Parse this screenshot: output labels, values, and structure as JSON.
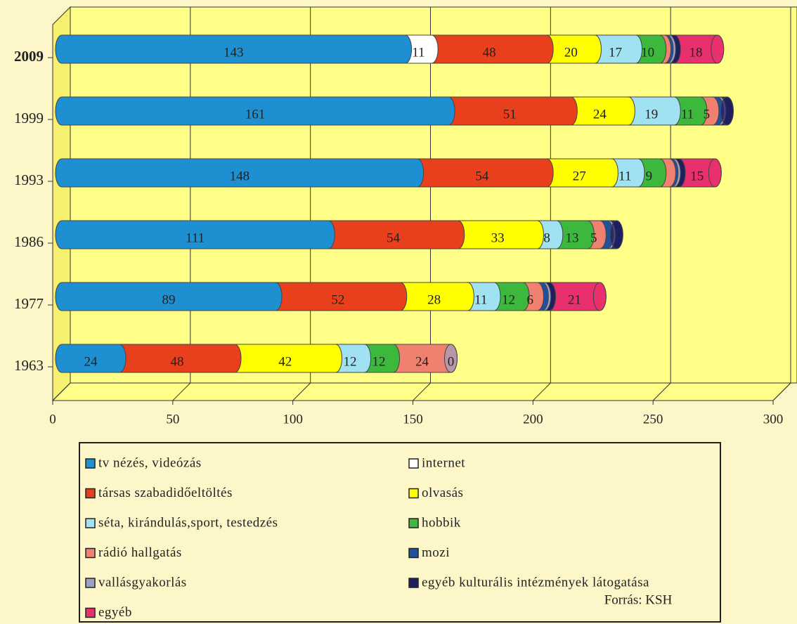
{
  "chart_data": {
    "type": "bar3d",
    "orientation": "horizontal",
    "stacked": true,
    "categories": [
      "1963",
      "1977",
      "1986",
      "1993",
      "1999",
      "2009"
    ],
    "series": [
      {
        "name": "tv nézés, videózás",
        "color": "#1e8fd0",
        "values": [
          24,
          89,
          111,
          148,
          161,
          143
        ]
      },
      {
        "name": "internet",
        "color": "#ffffff",
        "values": [
          null,
          null,
          null,
          null,
          null,
          11
        ]
      },
      {
        "name": "társas szabadidőeltöltés",
        "color": "#e8401c",
        "values": [
          48,
          52,
          54,
          54,
          51,
          48
        ]
      },
      {
        "name": "olvasás",
        "color": "#ffff00",
        "values": [
          42,
          28,
          33,
          27,
          24,
          20
        ]
      },
      {
        "name": "séta, kirándulás,sport, testedzés",
        "color": "#a0e2f2",
        "values": [
          12,
          11,
          8,
          11,
          19,
          17
        ]
      },
      {
        "name": "hobbik",
        "color": "#3cb83c",
        "values": [
          12,
          12,
          13,
          9,
          11,
          10
        ]
      },
      {
        "name": "rádió hallgatás",
        "color": "#f08070",
        "values": [
          24,
          6,
          5,
          4,
          5,
          2
        ]
      },
      {
        "name": "mozi",
        "color": "#2050a0",
        "values": [
          null,
          2,
          3,
          1,
          2,
          1
        ]
      },
      {
        "name": "vallásgyakorlás",
        "color": "#a0a0c0",
        "values": [
          0,
          1,
          1,
          1,
          1,
          1
        ]
      },
      {
        "name": "egyéb kulturális intézmények látogatása",
        "color": "#202060",
        "values": [
          null,
          2,
          3,
          2,
          3,
          2
        ]
      },
      {
        "name": "egyéb",
        "color": "#e8306c",
        "values": [
          null,
          21,
          null,
          15,
          null,
          18
        ]
      }
    ],
    "xlim": [
      0,
      300
    ],
    "xticks": [
      0,
      50,
      100,
      150,
      200,
      250,
      300
    ],
    "grid": true,
    "source": "Forrás: KSH"
  }
}
